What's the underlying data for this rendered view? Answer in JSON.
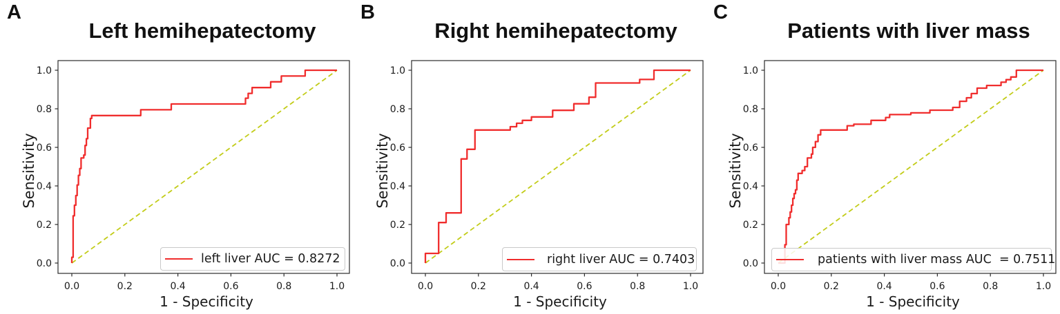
{
  "figure_background": "#ffffff",
  "colors": {
    "roc_line": "#f02c2c",
    "chance_line": "#c2cc18",
    "axis": "#2b2b2b",
    "text": "#1a1a1a",
    "legend_border": "#c9c9c9"
  },
  "panel_letters": [
    "A",
    "B",
    "C"
  ],
  "chart_data": [
    {
      "type": "line",
      "title": "Left hemihepatectomy",
      "xlabel": "1 - Specificity",
      "ylabel": "Sensitivity",
      "xlim": [
        -0.05,
        1.05
      ],
      "ylim": [
        -0.05,
        1.05
      ],
      "grid": false,
      "legend_position": "lower right",
      "auc": 0.8272,
      "x_ticks": [
        0,
        0.2,
        0.4,
        0.6,
        0.8,
        1.0
      ],
      "x_tick_labels": [
        "0.0",
        "0.2",
        "0.4",
        "0.6",
        "0.8",
        "1.0"
      ],
      "y_ticks": [
        0,
        0.2,
        0.4,
        0.6,
        0.8,
        1.0
      ],
      "y_tick_labels": [
        "0.0",
        "0.2",
        "0.4",
        "0.6",
        "0.8",
        "1.0"
      ],
      "series": [
        {
          "name": "left liver AUC = 0.8272",
          "color": "#f02c2c",
          "style": "solid",
          "points": [
            [
              0,
              0
            ],
            [
              0,
              0.03
            ],
            [
              0.005,
              0.03
            ],
            [
              0.005,
              0.245
            ],
            [
              0.01,
              0.245
            ],
            [
              0.01,
              0.3
            ],
            [
              0.015,
              0.3
            ],
            [
              0.015,
              0.35
            ],
            [
              0.02,
              0.35
            ],
            [
              0.02,
              0.405
            ],
            [
              0.025,
              0.405
            ],
            [
              0.025,
              0.455
            ],
            [
              0.03,
              0.455
            ],
            [
              0.03,
              0.49
            ],
            [
              0.035,
              0.49
            ],
            [
              0.035,
              0.545
            ],
            [
              0.045,
              0.545
            ],
            [
              0.045,
              0.56
            ],
            [
              0.05,
              0.56
            ],
            [
              0.05,
              0.61
            ],
            [
              0.055,
              0.61
            ],
            [
              0.055,
              0.645
            ],
            [
              0.06,
              0.645
            ],
            [
              0.06,
              0.7
            ],
            [
              0.07,
              0.7
            ],
            [
              0.07,
              0.75
            ],
            [
              0.075,
              0.75
            ],
            [
              0.075,
              0.765
            ],
            [
              0.26,
              0.765
            ],
            [
              0.26,
              0.795
            ],
            [
              0.375,
              0.795
            ],
            [
              0.375,
              0.825
            ],
            [
              0.655,
              0.825
            ],
            [
              0.655,
              0.855
            ],
            [
              0.665,
              0.855
            ],
            [
              0.665,
              0.88
            ],
            [
              0.68,
              0.88
            ],
            [
              0.68,
              0.91
            ],
            [
              0.75,
              0.91
            ],
            [
              0.75,
              0.94
            ],
            [
              0.79,
              0.94
            ],
            [
              0.79,
              0.97
            ],
            [
              0.88,
              0.97
            ],
            [
              0.88,
              1
            ],
            [
              1,
              1
            ]
          ]
        },
        {
          "name": "chance",
          "color": "#c2cc18",
          "style": "dashed",
          "points": [
            [
              0,
              0
            ],
            [
              1,
              1
            ]
          ]
        }
      ]
    },
    {
      "type": "line",
      "title": "Right hemihepatectomy",
      "xlabel": "1 - Specificity",
      "ylabel": "Sensitivity",
      "xlim": [
        -0.05,
        1.05
      ],
      "ylim": [
        -0.05,
        1.05
      ],
      "grid": false,
      "legend_position": "lower right",
      "auc": 0.7403,
      "x_ticks": [
        0,
        0.2,
        0.4,
        0.6,
        0.8,
        1.0
      ],
      "x_tick_labels": [
        "0.0",
        "0.2",
        "0.4",
        "0.6",
        "0.8",
        "1.0"
      ],
      "y_ticks": [
        0,
        0.2,
        0.4,
        0.6,
        0.8,
        1.0
      ],
      "y_tick_labels": [
        "0.0",
        "0.2",
        "0.4",
        "0.6",
        "0.8",
        "1.0"
      ],
      "series": [
        {
          "name": "right liver AUC = 0.7403",
          "color": "#f02c2c",
          "style": "solid",
          "points": [
            [
              0,
              0
            ],
            [
              0,
              0.05
            ],
            [
              0.05,
              0.05
            ],
            [
              0.05,
              0.21
            ],
            [
              0.078,
              0.21
            ],
            [
              0.078,
              0.26
            ],
            [
              0.135,
              0.26
            ],
            [
              0.135,
              0.54
            ],
            [
              0.157,
              0.54
            ],
            [
              0.157,
              0.59
            ],
            [
              0.187,
              0.59
            ],
            [
              0.187,
              0.69
            ],
            [
              0.32,
              0.69
            ],
            [
              0.32,
              0.707
            ],
            [
              0.344,
              0.707
            ],
            [
              0.344,
              0.725
            ],
            [
              0.366,
              0.725
            ],
            [
              0.366,
              0.74
            ],
            [
              0.4,
              0.74
            ],
            [
              0.4,
              0.758
            ],
            [
              0.48,
              0.758
            ],
            [
              0.48,
              0.792
            ],
            [
              0.56,
              0.792
            ],
            [
              0.56,
              0.826
            ],
            [
              0.617,
              0.826
            ],
            [
              0.617,
              0.86
            ],
            [
              0.642,
              0.86
            ],
            [
              0.642,
              0.934
            ],
            [
              0.808,
              0.934
            ],
            [
              0.808,
              0.952
            ],
            [
              0.862,
              0.952
            ],
            [
              0.862,
              1
            ],
            [
              1,
              1
            ]
          ]
        },
        {
          "name": "chance",
          "color": "#c2cc18",
          "style": "dashed",
          "points": [
            [
              0,
              0
            ],
            [
              1,
              1
            ]
          ]
        }
      ]
    },
    {
      "type": "line",
      "title": "Patients with liver mass",
      "xlabel": "1 - Specificity",
      "ylabel": "Sensitivity",
      "xlim": [
        -0.05,
        1.05
      ],
      "ylim": [
        -0.05,
        1.05
      ],
      "grid": false,
      "legend_position": "lower right",
      "auc": 0.7511,
      "x_ticks": [
        0,
        0.2,
        0.4,
        0.6,
        0.8,
        1.0
      ],
      "x_tick_labels": [
        "0.0",
        "0.2",
        "0.4",
        "0.6",
        "0.8",
        "1.0"
      ],
      "y_ticks": [
        0,
        0.2,
        0.4,
        0.6,
        0.8,
        1.0
      ],
      "y_tick_labels": [
        "0.0",
        "0.2",
        "0.4",
        "0.6",
        "0.8",
        "1.0"
      ],
      "series": [
        {
          "name": "patients with liver mass AUC  = 0.7511",
          "color": "#f02c2c",
          "style": "solid",
          "points": [
            [
              0,
              0
            ],
            [
              0.025,
              0
            ],
            [
              0.025,
              0.095
            ],
            [
              0.03,
              0.095
            ],
            [
              0.03,
              0.2
            ],
            [
              0.04,
              0.2
            ],
            [
              0.04,
              0.235
            ],
            [
              0.045,
              0.235
            ],
            [
              0.045,
              0.265
            ],
            [
              0.05,
              0.265
            ],
            [
              0.05,
              0.3
            ],
            [
              0.055,
              0.3
            ],
            [
              0.055,
              0.335
            ],
            [
              0.06,
              0.335
            ],
            [
              0.06,
              0.36
            ],
            [
              0.065,
              0.36
            ],
            [
              0.065,
              0.38
            ],
            [
              0.07,
              0.38
            ],
            [
              0.07,
              0.43
            ],
            [
              0.075,
              0.43
            ],
            [
              0.075,
              0.465
            ],
            [
              0.09,
              0.465
            ],
            [
              0.09,
              0.48
            ],
            [
              0.1,
              0.48
            ],
            [
              0.1,
              0.5
            ],
            [
              0.11,
              0.5
            ],
            [
              0.11,
              0.545
            ],
            [
              0.125,
              0.545
            ],
            [
              0.125,
              0.565
            ],
            [
              0.13,
              0.565
            ],
            [
              0.13,
              0.6
            ],
            [
              0.14,
              0.6
            ],
            [
              0.14,
              0.63
            ],
            [
              0.15,
              0.63
            ],
            [
              0.15,
              0.665
            ],
            [
              0.16,
              0.665
            ],
            [
              0.16,
              0.69
            ],
            [
              0.26,
              0.69
            ],
            [
              0.26,
              0.712
            ],
            [
              0.285,
              0.712
            ],
            [
              0.285,
              0.72
            ],
            [
              0.35,
              0.72
            ],
            [
              0.35,
              0.74
            ],
            [
              0.405,
              0.74
            ],
            [
              0.405,
              0.755
            ],
            [
              0.42,
              0.755
            ],
            [
              0.42,
              0.77
            ],
            [
              0.5,
              0.77
            ],
            [
              0.5,
              0.779
            ],
            [
              0.572,
              0.779
            ],
            [
              0.572,
              0.793
            ],
            [
              0.658,
              0.793
            ],
            [
              0.658,
              0.807
            ],
            [
              0.684,
              0.807
            ],
            [
              0.684,
              0.839
            ],
            [
              0.71,
              0.839
            ],
            [
              0.71,
              0.857
            ],
            [
              0.728,
              0.857
            ],
            [
              0.728,
              0.879
            ],
            [
              0.75,
              0.879
            ],
            [
              0.75,
              0.907
            ],
            [
              0.786,
              0.907
            ],
            [
              0.786,
              0.921
            ],
            [
              0.84,
              0.921
            ],
            [
              0.84,
              0.938
            ],
            [
              0.859,
              0.938
            ],
            [
              0.859,
              0.951
            ],
            [
              0.877,
              0.951
            ],
            [
              0.877,
              0.965
            ],
            [
              0.898,
              0.965
            ],
            [
              0.898,
              1
            ],
            [
              1,
              1
            ]
          ]
        },
        {
          "name": "chance",
          "color": "#c2cc18",
          "style": "dashed",
          "points": [
            [
              0,
              0
            ],
            [
              1,
              1
            ]
          ]
        }
      ]
    }
  ]
}
